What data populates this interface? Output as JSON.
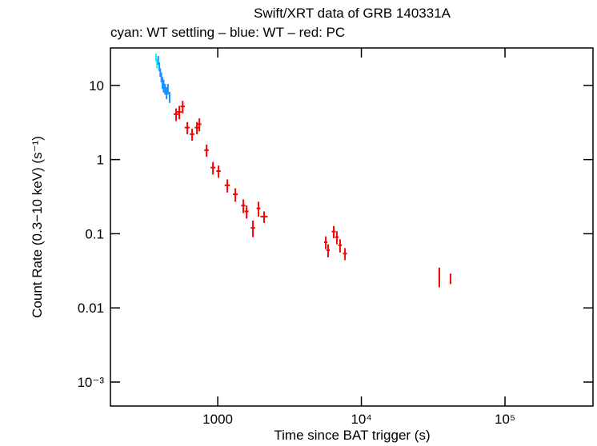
{
  "chart_data": {
    "type": "scatter",
    "title": "Swift/XRT data of GRB 140331A",
    "subtitle": "cyan: WT settling – blue: WT – red: PC",
    "x_label": "Time since BAT trigger (s)",
    "y_label": "Count Rate (0.3−10 keV) (s⁻¹)",
    "xscale": "log",
    "yscale": "log",
    "xlim": [
      179,
      410000
    ],
    "ylim": [
      0.000475,
      32
    ],
    "xticks": [
      1000,
      {
        "value": 10000,
        "label": "10⁴"
      },
      {
        "value": 100000,
        "label": "10⁵"
      }
    ],
    "yticks": [
      10,
      1,
      0.1,
      0.01,
      {
        "value": 0.001,
        "label": "10⁻³"
      }
    ],
    "series": [
      {
        "name": "WT settling",
        "color": "#00ffff",
        "x": [
          372,
          377
        ],
        "values": [
          24,
          20
        ],
        "xerr": [
          2,
          2
        ],
        "yerr": [
          3,
          3
        ]
      },
      {
        "name": "WT",
        "color": "#1e8fff",
        "x": [
          385,
          392,
          398,
          405,
          412,
          420,
          430,
          440,
          450,
          462
        ],
        "values": [
          22,
          18,
          15,
          13,
          11,
          10,
          9,
          8,
          9,
          7
        ],
        "xerr": [
          3,
          3,
          3,
          3,
          3,
          3,
          3,
          3,
          3,
          3
        ],
        "yerr": [
          3,
          2.5,
          2,
          2,
          2,
          2,
          1.5,
          1.5,
          1.5,
          1.2
        ]
      },
      {
        "name": "PC",
        "color": "#ff0000",
        "x": [
          513,
          540,
          570,
          614,
          663,
          716,
          745,
          836,
          926,
          1013,
          1166,
          1326,
          1507,
          1588,
          1758,
          1923,
          2103,
          5650,
          5870,
          6420,
          6750,
          7110,
          7690,
          34900,
          41800
        ],
        "values": [
          4.1,
          4.4,
          5.2,
          2.7,
          2.2,
          2.7,
          3.0,
          1.34,
          0.78,
          0.7,
          0.45,
          0.34,
          0.24,
          0.2,
          0.12,
          0.22,
          0.17,
          0.077,
          0.06,
          0.107,
          0.09,
          0.07,
          0.054,
          0.027,
          0.025
        ],
        "xerr": [
          20,
          20,
          20,
          25,
          25,
          25,
          25,
          30,
          35,
          35,
          50,
          50,
          50,
          50,
          60,
          60,
          120,
          150,
          150,
          200,
          200,
          200,
          250,
          300,
          400
        ],
        "yerr": [
          0.8,
          0.9,
          1.0,
          0.5,
          0.4,
          0.5,
          0.6,
          0.25,
          0.15,
          0.13,
          0.09,
          0.07,
          0.05,
          0.04,
          0.03,
          0.05,
          0.03,
          0.015,
          0.012,
          0.02,
          0.018,
          0.014,
          0.01,
          0.008,
          0.004
        ]
      }
    ]
  }
}
